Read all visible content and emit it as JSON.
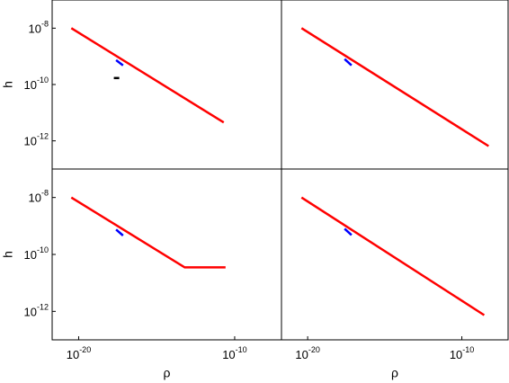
{
  "chart_data": [
    {
      "type": "line",
      "xscale": "log",
      "yscale": "log",
      "xlim": [
        2e-22,
        1e-07
      ],
      "ylim": [
        1e-13,
        1e-07
      ],
      "ylabel": "h",
      "yticks": [
        {
          "value": 1e-08,
          "label": "10-8"
        },
        {
          "value": 1e-10,
          "label": "10-10"
        },
        {
          "value": 1e-12,
          "label": "10-12"
        }
      ],
      "series": [
        {
          "color": "#ff0000",
          "x": [
            3.4e-21,
            2e-11
          ],
          "values": [
            1e-08,
            4.5e-12
          ]
        },
        {
          "color": "#0000ff",
          "x": [
            2.5e-18,
            7e-18
          ],
          "values": [
            7.3e-10,
            4.8e-10
          ]
        },
        {
          "color": "#000000",
          "x": [
            1.8e-18,
            4e-18
          ],
          "values": [
            1.7e-10,
            1.7e-10
          ]
        }
      ]
    },
    {
      "type": "line",
      "xscale": "log",
      "yscale": "log",
      "xlim": [
        2e-22,
        1e-07
      ],
      "ylim": [
        1e-13,
        1e-07
      ],
      "series": [
        {
          "color": "#ff0000",
          "x": [
            4e-21,
            5.4e-09
          ],
          "values": [
            1e-08,
            6.5e-13
          ]
        },
        {
          "color": "#0000ff",
          "x": [
            2.5e-18,
            7e-18
          ],
          "values": [
            8e-10,
            4.8e-10
          ]
        }
      ]
    },
    {
      "type": "line",
      "xscale": "log",
      "yscale": "log",
      "xlim": [
        2e-22,
        1e-07
      ],
      "ylim": [
        1e-13,
        1e-07
      ],
      "ylabel": "h",
      "xlabel": "ρ",
      "yticks": [
        {
          "value": 1e-08,
          "label": "10-8"
        },
        {
          "value": 1e-10,
          "label": "10-10"
        },
        {
          "value": 1e-12,
          "label": "10-12"
        }
      ],
      "xticks": [
        {
          "value": 1e-20,
          "label": "10-20"
        },
        {
          "value": 1e-10,
          "label": "10-10"
        }
      ],
      "series": [
        {
          "color": "#ff0000",
          "x": [
            3.4e-21,
            6.3e-14,
            2.6e-11
          ],
          "values": [
            1e-08,
            3.5e-11,
            3.5e-11
          ]
        },
        {
          "color": "#0000ff",
          "x": [
            2.5e-18,
            7e-18
          ],
          "values": [
            7.5e-10,
            4.6e-10
          ]
        }
      ]
    },
    {
      "type": "line",
      "xscale": "log",
      "yscale": "log",
      "xlim": [
        2e-22,
        1e-07
      ],
      "ylim": [
        1e-13,
        1e-07
      ],
      "xlabel": "ρ",
      "xticks": [
        {
          "value": 1e-20,
          "label": "10-20"
        },
        {
          "value": 1e-10,
          "label": "10-10"
        }
      ],
      "series": [
        {
          "color": "#ff0000",
          "x": [
            4e-21,
            2.8e-09
          ],
          "values": [
            1e-08,
            7.4e-13
          ]
        },
        {
          "color": "#0000ff",
          "x": [
            2.5e-18,
            7e-18
          ],
          "values": [
            8e-10,
            4.8e-10
          ]
        }
      ]
    }
  ]
}
